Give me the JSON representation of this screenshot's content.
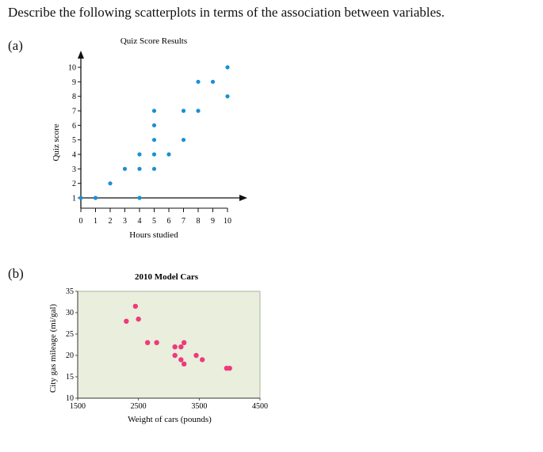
{
  "question": "Describe the following scatterplots in terms of the association between variables.",
  "part_a_label": "(a)",
  "part_b_label": "(b)",
  "chart_data": [
    {
      "type": "scatter",
      "title": "Quiz Score Results",
      "xlabel": "Hours studied",
      "ylabel": "Quiz score",
      "xlim": [
        0,
        10
      ],
      "ylim": [
        1,
        10
      ],
      "xticks": [
        0,
        1,
        2,
        3,
        4,
        5,
        6,
        7,
        8,
        9,
        10
      ],
      "yticks": [
        1,
        2,
        3,
        4,
        5,
        6,
        7,
        8,
        9,
        10
      ],
      "grid": false,
      "color": "#1a8fd6",
      "points": [
        [
          0,
          1
        ],
        [
          1,
          1
        ],
        [
          2,
          2
        ],
        [
          3,
          3
        ],
        [
          4,
          1
        ],
        [
          4,
          3
        ],
        [
          4,
          4
        ],
        [
          5,
          3
        ],
        [
          5,
          4
        ],
        [
          5,
          5
        ],
        [
          5,
          6
        ],
        [
          5,
          7
        ],
        [
          6,
          4
        ],
        [
          7,
          5
        ],
        [
          7,
          7
        ],
        [
          8,
          7
        ],
        [
          8,
          9
        ],
        [
          9,
          9
        ],
        [
          10,
          8
        ],
        [
          10,
          10
        ]
      ]
    },
    {
      "type": "scatter",
      "title": "2010 Model Cars",
      "xlabel": "Weight of cars (pounds)",
      "ylabel": "City gas mileage (mi/gal)",
      "xlim": [
        1500,
        4500
      ],
      "ylim": [
        10,
        35
      ],
      "xticks": [
        1500,
        2500,
        3500,
        4500
      ],
      "yticks": [
        10,
        15,
        20,
        25,
        30,
        35
      ],
      "grid": false,
      "color": "#ee3a7a",
      "background": "#e9eedd",
      "points": [
        [
          2300,
          28
        ],
        [
          2450,
          31.5
        ],
        [
          2500,
          28.5
        ],
        [
          2650,
          23
        ],
        [
          2800,
          23
        ],
        [
          3100,
          22
        ],
        [
          3100,
          20
        ],
        [
          3200,
          22
        ],
        [
          3200,
          19
        ],
        [
          3250,
          18
        ],
        [
          3250,
          23
        ],
        [
          3450,
          20
        ],
        [
          3550,
          19
        ],
        [
          3950,
          17
        ],
        [
          4000,
          17
        ]
      ]
    }
  ]
}
